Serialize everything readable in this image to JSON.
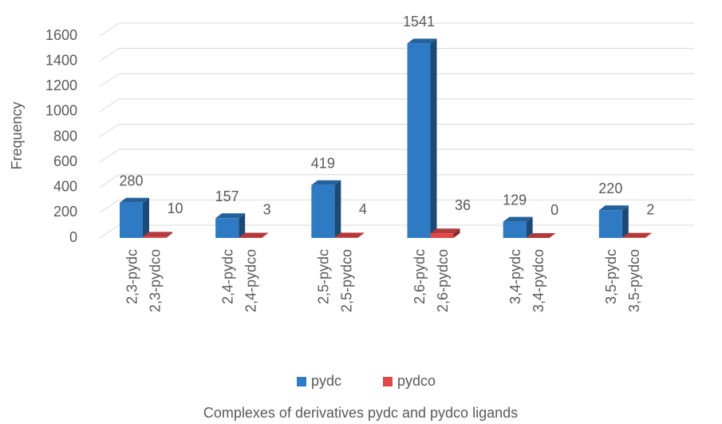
{
  "chart_data": {
    "type": "bar3d",
    "y_label": "Frequency",
    "x_label": "Complexes of derivatives pydc and pydco ligands",
    "series": [
      {
        "name": "pydc",
        "color": "#2e7bc4",
        "labels": [
          "2,3-pydc",
          "2,4-pydc",
          "2,5-pydc",
          "2,6-pydc",
          "3,4-pydc",
          "3,5-pydc"
        ],
        "values": [
          280,
          157,
          419,
          1541,
          129,
          220
        ]
      },
      {
        "name": "pydco",
        "color": "#e04848",
        "labels": [
          "2,3-pydco",
          "2,4-pydco",
          "2,5-pydco",
          "2,6-pydco",
          "3,4-pydco",
          "3,5-pydco"
        ],
        "values": [
          10,
          3,
          4,
          36,
          0,
          2
        ]
      }
    ],
    "ylim": [
      0,
      1600
    ],
    "yticks": [
      0,
      200,
      400,
      600,
      800,
      1000,
      1200,
      1400,
      1600
    ],
    "grid": true,
    "legend": "bottom"
  }
}
